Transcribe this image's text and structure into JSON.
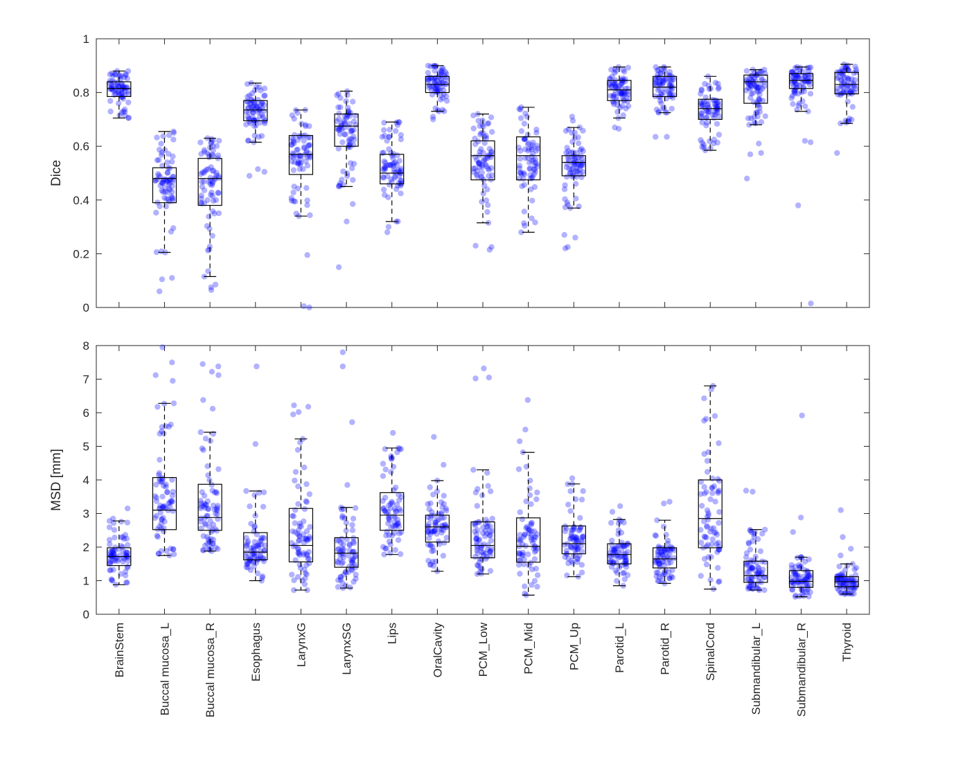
{
  "chart_data": [
    {
      "type": "box",
      "ylabel": "Dice",
      "ylim": [
        0,
        1
      ],
      "yticks": [
        0,
        0.2,
        0.4,
        0.6,
        0.8,
        1
      ],
      "ytick_labels": [
        "0",
        "0.2",
        "0.4",
        "0.6",
        "0.8",
        "1"
      ],
      "point_color": "#0000ff",
      "categories": [
        "BrainStem",
        "Buccal mucosa_L",
        "Buccal mucosa_R",
        "Esophagus",
        "LarynxG",
        "LarynxSG",
        "Lips",
        "OralCavity",
        "PCM_Low",
        "PCM_Mid",
        "PCM_Up",
        "Parotid_L",
        "Parotid_R",
        "SpinalCord",
        "Submandibular_L",
        "Submandibular_R",
        "Thyroid"
      ],
      "boxes": [
        {
          "q1": 0.785,
          "median": 0.815,
          "q3": 0.84,
          "wlo": 0.705,
          "whi": 0.88,
          "outliers": []
        },
        {
          "q1": 0.39,
          "median": 0.48,
          "q3": 0.52,
          "wlo": 0.205,
          "whi": 0.655,
          "outliers": [
            0.11,
            0.105,
            0.06
          ]
        },
        {
          "q1": 0.38,
          "median": 0.48,
          "q3": 0.555,
          "wlo": 0.115,
          "whi": 0.63,
          "outliers": [
            0.085,
            0.075,
            0.065
          ]
        },
        {
          "q1": 0.695,
          "median": 0.735,
          "q3": 0.77,
          "wlo": 0.615,
          "whi": 0.835,
          "outliers": [
            0.515,
            0.505,
            0.49
          ]
        },
        {
          "q1": 0.495,
          "median": 0.57,
          "q3": 0.64,
          "wlo": 0.34,
          "whi": 0.735,
          "outliers": [
            0.195,
            0.005,
            0.0
          ]
        },
        {
          "q1": 0.6,
          "median": 0.675,
          "q3": 0.72,
          "wlo": 0.45,
          "whi": 0.805,
          "outliers": [
            0.385,
            0.32,
            0.15
          ]
        },
        {
          "q1": 0.46,
          "median": 0.5,
          "q3": 0.57,
          "wlo": 0.32,
          "whi": 0.69,
          "outliers": [
            0.3,
            0.28
          ]
        },
        {
          "q1": 0.8,
          "median": 0.83,
          "q3": 0.86,
          "wlo": 0.73,
          "whi": 0.9,
          "outliers": [
            0.71,
            0.7
          ]
        },
        {
          "q1": 0.475,
          "median": 0.565,
          "q3": 0.62,
          "wlo": 0.315,
          "whi": 0.72,
          "outliers": [
            0.23,
            0.225,
            0.215
          ]
        },
        {
          "q1": 0.475,
          "median": 0.565,
          "q3": 0.635,
          "wlo": 0.28,
          "whi": 0.745,
          "outliers": []
        },
        {
          "q1": 0.49,
          "median": 0.54,
          "q3": 0.565,
          "wlo": 0.37,
          "whi": 0.67,
          "outliers": [
            0.27,
            0.26,
            0.225,
            0.22,
            0.71,
            0.695
          ]
        },
        {
          "q1": 0.77,
          "median": 0.81,
          "q3": 0.845,
          "wlo": 0.705,
          "whi": 0.895,
          "outliers": [
            0.67,
            0.665
          ]
        },
        {
          "q1": 0.785,
          "median": 0.82,
          "q3": 0.86,
          "wlo": 0.725,
          "whi": 0.895,
          "outliers": [
            0.635,
            0.635
          ]
        },
        {
          "q1": 0.7,
          "median": 0.74,
          "q3": 0.775,
          "wlo": 0.585,
          "whi": 0.86,
          "outliers": []
        },
        {
          "q1": 0.76,
          "median": 0.84,
          "q3": 0.865,
          "wlo": 0.68,
          "whi": 0.885,
          "outliers": [
            0.61,
            0.575,
            0.57,
            0.48
          ]
        },
        {
          "q1": 0.815,
          "median": 0.845,
          "q3": 0.87,
          "wlo": 0.73,
          "whi": 0.895,
          "outliers": [
            0.62,
            0.615,
            0.38,
            0.015
          ]
        },
        {
          "q1": 0.795,
          "median": 0.83,
          "q3": 0.875,
          "wlo": 0.685,
          "whi": 0.905,
          "outliers": [
            0.575
          ]
        }
      ]
    },
    {
      "type": "box",
      "ylabel": "MSD [mm]",
      "ylim": [
        0,
        8
      ],
      "yticks": [
        0,
        1,
        2,
        3,
        4,
        5,
        6,
        7,
        8
      ],
      "ytick_labels": [
        "0",
        "1",
        "2",
        "3",
        "4",
        "5",
        "6",
        "7",
        "8"
      ],
      "point_color": "#0000ff",
      "categories": [
        "BrainStem",
        "Buccal mucosa_L",
        "Buccal mucosa_R",
        "Esophagus",
        "LarynxG",
        "LarynxSG",
        "Lips",
        "OralCavity",
        "PCM_Low",
        "PCM_Mid",
        "PCM_Up",
        "Parotid_L",
        "Parotid_R",
        "SpinalCord",
        "Submandibular_L",
        "Submandibular_R",
        "Thyroid"
      ],
      "boxes": [
        {
          "q1": 1.45,
          "median": 1.72,
          "q3": 1.98,
          "wlo": 0.88,
          "whi": 2.78,
          "outliers": [
            3.15,
            2.85
          ]
        },
        {
          "q1": 2.52,
          "median": 3.1,
          "q3": 4.07,
          "wlo": 1.75,
          "whi": 6.28,
          "outliers": [
            7.95,
            7.5,
            7.12,
            6.95
          ]
        },
        {
          "q1": 2.5,
          "median": 2.88,
          "q3": 3.87,
          "wlo": 1.88,
          "whi": 5.42,
          "outliers": [
            7.45,
            7.38,
            7.22,
            7.12,
            6.38,
            6.12
          ]
        },
        {
          "q1": 1.62,
          "median": 1.85,
          "q3": 2.43,
          "wlo": 1.0,
          "whi": 3.67,
          "outliers": [
            7.38,
            5.07
          ]
        },
        {
          "q1": 1.56,
          "median": 2.05,
          "q3": 3.15,
          "wlo": 0.72,
          "whi": 5.22,
          "outliers": [
            6.22,
            6.18,
            6.02,
            5.95
          ]
        },
        {
          "q1": 1.4,
          "median": 1.82,
          "q3": 2.28,
          "wlo": 0.78,
          "whi": 3.18,
          "outliers": [
            7.8,
            7.38,
            5.72,
            3.85
          ]
        },
        {
          "q1": 2.5,
          "median": 2.95,
          "q3": 3.62,
          "wlo": 1.78,
          "whi": 4.95,
          "outliers": [
            5.4
          ]
        },
        {
          "q1": 2.15,
          "median": 2.6,
          "q3": 2.95,
          "wlo": 1.28,
          "whi": 3.98,
          "outliers": [
            5.28,
            4.45
          ]
        },
        {
          "q1": 1.68,
          "median": 2.05,
          "q3": 2.75,
          "wlo": 1.2,
          "whi": 4.3,
          "outliers": [
            7.32,
            7.05,
            7.02
          ]
        },
        {
          "q1": 1.55,
          "median": 2.02,
          "q3": 2.87,
          "wlo": 0.57,
          "whi": 4.82,
          "outliers": [
            6.38,
            5.5,
            5.15
          ]
        },
        {
          "q1": 1.8,
          "median": 2.1,
          "q3": 2.63,
          "wlo": 1.12,
          "whi": 3.88,
          "outliers": [
            4.05
          ]
        },
        {
          "q1": 1.5,
          "median": 1.78,
          "q3": 2.1,
          "wlo": 0.85,
          "whi": 2.82,
          "outliers": [
            3.22,
            3.05
          ]
        },
        {
          "q1": 1.38,
          "median": 1.65,
          "q3": 1.98,
          "wlo": 0.92,
          "whi": 2.8,
          "outliers": [
            3.35,
            3.3
          ]
        },
        {
          "q1": 1.98,
          "median": 2.85,
          "q3": 4.0,
          "wlo": 0.75,
          "whi": 6.8,
          "outliers": []
        },
        {
          "q1": 0.95,
          "median": 1.15,
          "q3": 1.58,
          "wlo": 0.72,
          "whi": 2.52,
          "outliers": [
            3.68,
            3.65
          ]
        },
        {
          "q1": 0.8,
          "median": 0.98,
          "q3": 1.3,
          "wlo": 0.52,
          "whi": 1.7,
          "outliers": [
            5.92,
            2.88,
            2.45
          ]
        },
        {
          "q1": 0.82,
          "median": 0.97,
          "q3": 1.12,
          "wlo": 0.6,
          "whi": 1.5,
          "outliers": [
            3.1,
            2.3,
            1.95,
            1.75
          ]
        }
      ]
    }
  ]
}
